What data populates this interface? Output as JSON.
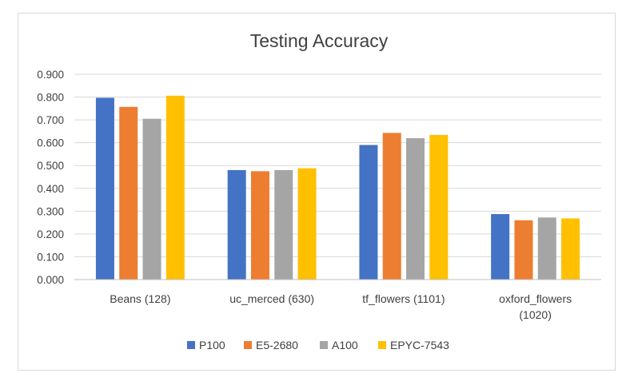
{
  "chart_data": {
    "type": "bar",
    "title": "Testing Accuracy",
    "xlabel": "",
    "ylabel": "",
    "ylim": [
      0,
      0.9
    ],
    "yticks": [
      "0.000",
      "0.100",
      "0.200",
      "0.300",
      "0.400",
      "0.500",
      "0.600",
      "0.700",
      "0.800",
      "0.900"
    ],
    "categories": [
      [
        "Beans (128)"
      ],
      [
        "uc_merced (630)"
      ],
      [
        "tf_flowers (1101)"
      ],
      [
        "oxford_flowers",
        "(1020)"
      ]
    ],
    "series": [
      {
        "name": "P100",
        "color": "#4472c4",
        "values": [
          0.797,
          0.48,
          0.59,
          0.287
        ]
      },
      {
        "name": "E5-2680",
        "color": "#ed7d31",
        "values": [
          0.757,
          0.475,
          0.643,
          0.26
        ]
      },
      {
        "name": "A100",
        "color": "#a5a5a5",
        "values": [
          0.705,
          0.48,
          0.62,
          0.272
        ]
      },
      {
        "name": "EPYC-7543",
        "color": "#ffc000",
        "values": [
          0.806,
          0.488,
          0.634,
          0.268
        ]
      }
    ],
    "grid": true,
    "legend_position": "bottom"
  }
}
